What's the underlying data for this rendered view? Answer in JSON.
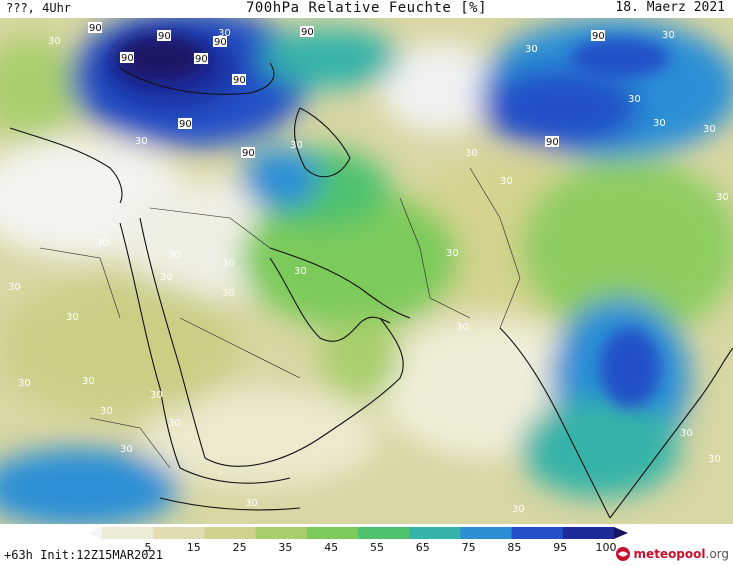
{
  "header": {
    "left": "???, 4Uhr",
    "title": "700hPa Relative Feuchte [%]",
    "right": "18. Maerz 2021"
  },
  "colorbar": {
    "ticks": [
      "5",
      "15",
      "25",
      "35",
      "45",
      "55",
      "65",
      "75",
      "85",
      "95",
      "100"
    ],
    "colors": [
      "#f4f4f4",
      "#ecebd6",
      "#e2dcb0",
      "#cfd28f",
      "#a9cf6c",
      "#7ccb5a",
      "#4fc26e",
      "#36b3a8",
      "#2b8fd6",
      "#2350c8",
      "#1c2a9a",
      "#1a1466"
    ]
  },
  "footer": {
    "left": "+63h Init:12Z15MAR2021",
    "logo_main": "meteopool",
    "logo_tld": ".org"
  },
  "map": {
    "contour_labels": [
      "90",
      "90",
      "90",
      "90",
      "90",
      "90",
      "90",
      "90",
      "90",
      "90",
      "90",
      "30",
      "30",
      "30",
      "30",
      "30",
      "30",
      "30",
      "30",
      "30",
      "30",
      "30",
      "30",
      "30",
      "30",
      "30",
      "30",
      "30",
      "30",
      "30",
      "30",
      "30",
      "30",
      "30",
      "30",
      "30",
      "30",
      "30",
      "30",
      "30",
      "30",
      "30",
      "30"
    ]
  }
}
